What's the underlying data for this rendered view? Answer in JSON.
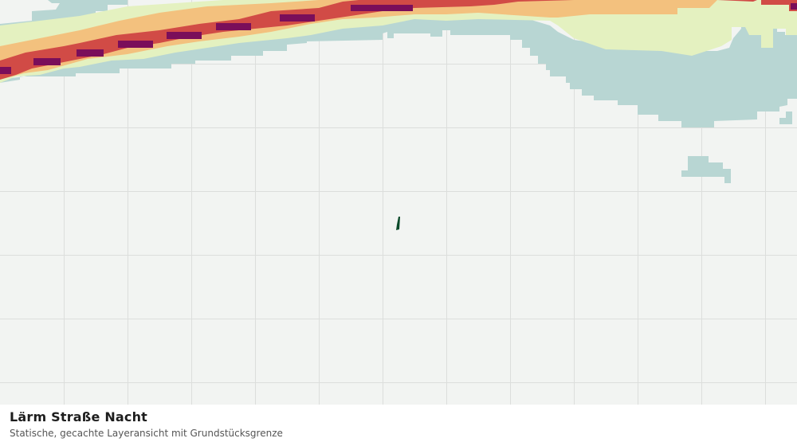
{
  "map": {
    "layer": "Lärm Straße Nacht",
    "colors": {
      "background": "#f2f4f2",
      "grid": "#dcdedc",
      "water": "#b8d6d3",
      "noise_band_1": "#e4f1c0",
      "noise_band_2": "#f3c17e",
      "noise_band_3": "#d14b46",
      "noise_band_4": "#7a0e5a",
      "parcel_boundary": "#0b4a2a"
    },
    "features": [
      "road-noise-band",
      "water-area",
      "parcel-boundary"
    ]
  },
  "caption": {
    "title": "Lärm Straße Nacht",
    "subtitle": "Statische, gecachte Layeransicht mit Grundstücksgrenze"
  }
}
